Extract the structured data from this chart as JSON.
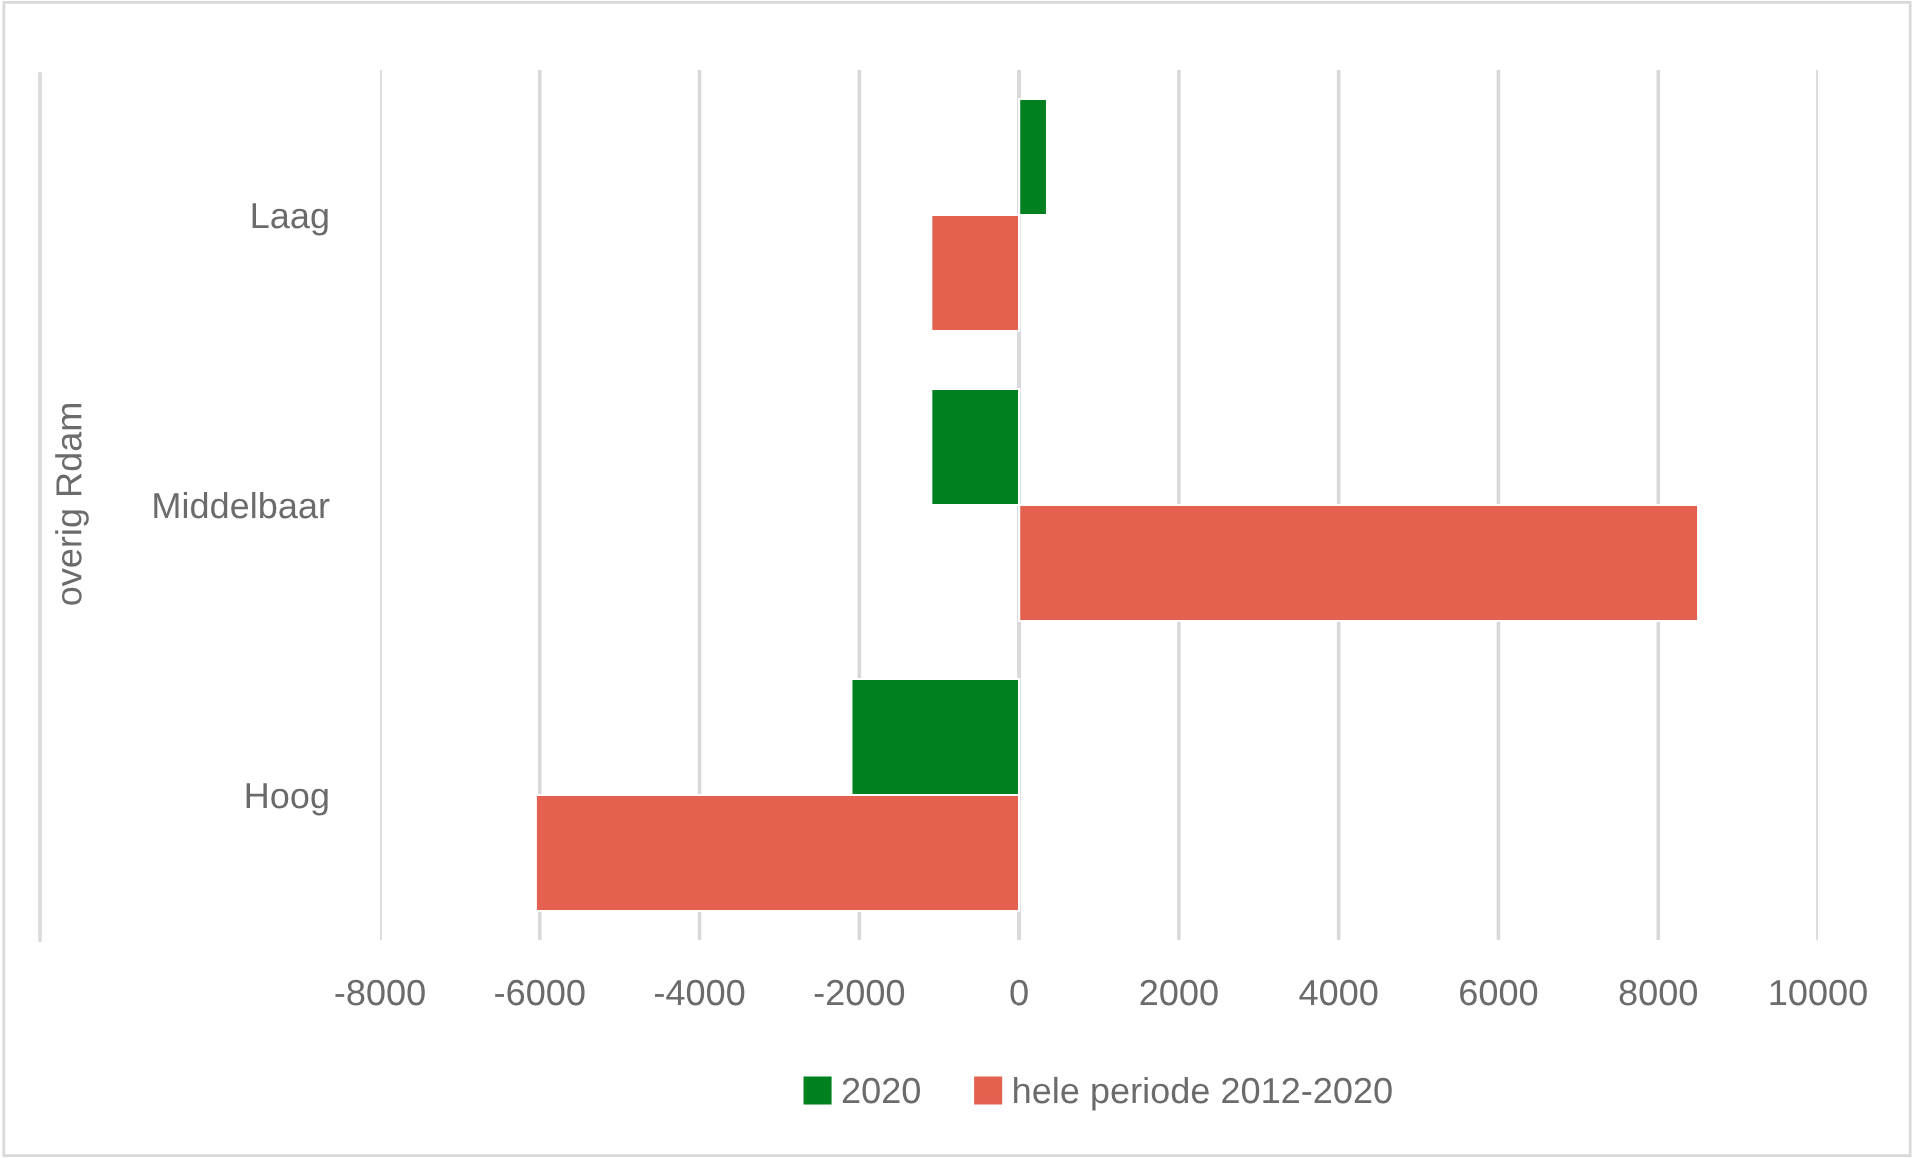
{
  "chart_data": {
    "type": "bar",
    "orientation": "horizontal",
    "ylabel": "overig Rdam",
    "categories": [
      "Laag",
      "Middelbaar",
      "Hoog"
    ],
    "series": [
      {
        "name": "2020",
        "color": "#00801f",
        "values": [
          350,
          -1100,
          -2100
        ]
      },
      {
        "name": "hele periode 2012-2020",
        "color": "#e46150",
        "values": [
          -1100,
          8500,
          -6050
        ]
      }
    ],
    "xlim": [
      -8000,
      10000
    ],
    "xticks": [
      -8000,
      -6000,
      -4000,
      -2000,
      0,
      2000,
      4000,
      6000,
      8000,
      10000
    ],
    "grid": "x",
    "legend": "bottom"
  }
}
